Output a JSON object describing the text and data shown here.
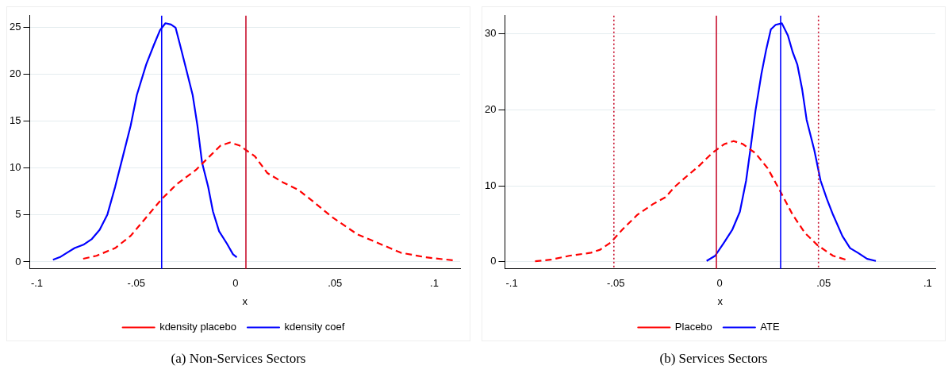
{
  "chart_data": [
    {
      "type": "line",
      "xlabel": "x",
      "annotations": [
        "(a) Non-Services Sectors"
      ],
      "xlim": [
        -0.1036,
        0.113
      ],
      "ylim": [
        -0.75,
        26.2
      ],
      "xticks": [
        {
          "value": -0.1,
          "label": "-.1"
        },
        {
          "value": -0.05,
          "label": "-.05"
        },
        0,
        {
          "value": 0.05,
          "label": ".05"
        },
        {
          "value": 0.1,
          "label": ".1"
        }
      ],
      "yticks": [
        0,
        5,
        10,
        15,
        20,
        25
      ],
      "grid": "y",
      "legend": "bottom",
      "marker": "none",
      "series": [
        {
          "name": "kdensity placebo",
          "color": "#ff0000",
          "line_style": "dashed",
          "x": [
            -0.0767,
            -0.07,
            -0.0606,
            -0.0528,
            -0.045,
            -0.0372,
            -0.0294,
            -0.02,
            -0.0138,
            -0.0075,
            -0.0028,
            0.0019,
            0.0097,
            0.016,
            0.0238,
            0.0316,
            0.0394,
            0.0488,
            0.0613,
            0.0722,
            0.0831,
            0.0956,
            0.1097
          ],
          "values": [
            0.33,
            0.65,
            1.47,
            2.77,
            4.73,
            6.68,
            8.31,
            9.78,
            11.08,
            12.39,
            12.71,
            12.39,
            11.24,
            9.45,
            8.47,
            7.66,
            6.36,
            4.73,
            2.93,
            1.96,
            0.98,
            0.49,
            0.16
          ]
        },
        {
          "name": "kdensity coef",
          "color": "#0000ff",
          "line_style": "solid",
          "x": [
            -0.0919,
            -0.088,
            -0.0848,
            -0.081,
            -0.0763,
            -0.0723,
            -0.0684,
            -0.0645,
            -0.0606,
            -0.0567,
            -0.0528,
            -0.0497,
            -0.045,
            -0.0411,
            -0.038,
            -0.0353,
            -0.0325,
            -0.0302,
            -0.0278,
            -0.0247,
            -0.0216,
            -0.0192,
            -0.0169,
            -0.0138,
            -0.0114,
            -0.0083,
            -0.0044,
            -0.0013,
            0.0006
          ],
          "values": [
            0.23,
            0.55,
            0.98,
            1.47,
            1.86,
            2.44,
            3.42,
            5.05,
            7.99,
            11.24,
            14.5,
            17.76,
            21.0,
            23.1,
            24.67,
            25.4,
            25.26,
            24.93,
            22.97,
            20.37,
            17.76,
            14.5,
            10.6,
            8.0,
            5.38,
            3.26,
            1.96,
            0.81,
            0.49
          ]
        }
      ],
      "ref_lines": [
        {
          "axis": "x",
          "value": -0.0372,
          "color": "#0000ff",
          "line_style": "solid"
        },
        {
          "axis": "x",
          "value": 0.0052,
          "color": "#c8102e",
          "line_style": "solid"
        }
      ]
    },
    {
      "type": "line",
      "xlabel": "x",
      "annotations": [
        "(b) Services Sectors"
      ],
      "xlim": [
        -0.1033,
        0.1037
      ],
      "ylim": [
        -0.93,
        32.4
      ],
      "xticks": [
        {
          "value": -0.1,
          "label": "-.1"
        },
        {
          "value": -0.05,
          "label": "-.05"
        },
        0,
        {
          "value": 0.05,
          "label": ".05"
        },
        {
          "value": 0.1,
          "label": ".1"
        }
      ],
      "yticks": [
        0,
        10,
        20,
        30
      ],
      "grid": "y",
      "legend": "bottom",
      "marker": "none",
      "series": [
        {
          "name": "Placebo",
          "color": "#ff0000",
          "line_style": "dashed",
          "x": [
            -0.0888,
            -0.0813,
            -0.0724,
            -0.0619,
            -0.0575,
            -0.0522,
            -0.047,
            -0.0396,
            -0.0321,
            -0.0261,
            -0.0216,
            -0.0157,
            -0.0097,
            -0.0037,
            0.0022,
            0.0067,
            0.0112,
            0.0172,
            0.0231,
            0.0291,
            0.0351,
            0.041,
            0.047,
            0.0545,
            0.0607
          ],
          "values": [
            0.08,
            0.28,
            0.8,
            1.2,
            1.6,
            2.6,
            4.2,
            6.2,
            7.6,
            8.5,
            9.9,
            11.3,
            12.7,
            14.3,
            15.5,
            15.9,
            15.5,
            14.3,
            12.3,
            9.3,
            6.2,
            3.8,
            2.2,
            0.8,
            0.28
          ]
        },
        {
          "name": "ATE",
          "color": "#0000ff",
          "line_style": "solid",
          "x": [
            -0.0063,
            -0.0022,
            0.0022,
            0.006,
            0.0097,
            0.0127,
            0.0149,
            0.0172,
            0.0201,
            0.0224,
            0.0246,
            0.0269,
            0.0299,
            0.0328,
            0.0351,
            0.0373,
            0.0396,
            0.0418,
            0.0455,
            0.0485,
            0.0515,
            0.0545,
            0.059,
            0.0627,
            0.0664,
            0.0709,
            0.0751
          ],
          "values": [
            0.12,
            0.8,
            2.6,
            4.2,
            6.6,
            10.7,
            15.1,
            19.9,
            24.8,
            28.0,
            30.6,
            31.2,
            31.4,
            29.8,
            27.6,
            26.0,
            22.8,
            18.7,
            14.7,
            10.7,
            8.3,
            6.2,
            3.4,
            1.8,
            1.2,
            0.4,
            0.12
          ]
        }
      ],
      "ref_lines": [
        {
          "axis": "x",
          "value": -0.0509,
          "color": "#c8102e",
          "line_style": "dotted"
        },
        {
          "axis": "x",
          "value": -0.0016,
          "color": "#c8102e",
          "line_style": "solid"
        },
        {
          "axis": "x",
          "value": 0.0293,
          "color": "#0000ff",
          "line_style": "solid"
        },
        {
          "axis": "x",
          "value": 0.0475,
          "color": "#c8102e",
          "line_style": "dotted"
        }
      ]
    }
  ]
}
